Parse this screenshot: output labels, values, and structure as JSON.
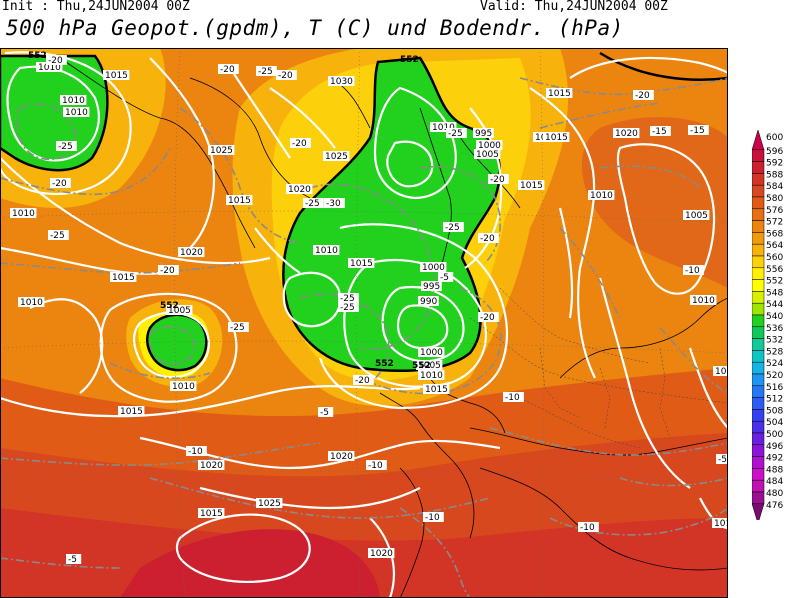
{
  "header": {
    "init": "Init : Thu,24JUN2004 00Z",
    "valid": "Valid: Thu,24JUN2004 00Z",
    "title": "500 hPa Geopot.(gpdm), T (C) und Bodendr. (hPa)"
  },
  "legend": {
    "levels": [
      "600",
      "596",
      "592",
      "588",
      "584",
      "580",
      "576",
      "572",
      "568",
      "564",
      "560",
      "556",
      "552",
      "548",
      "544",
      "540",
      "536",
      "532",
      "528",
      "524",
      "520",
      "516",
      "512",
      "508",
      "504",
      "500",
      "496",
      "492",
      "488",
      "484",
      "480",
      "476"
    ],
    "colors": [
      "#c8004e",
      "#c8103c",
      "#cc2030",
      "#d23426",
      "#d8481e",
      "#e05c16",
      "#e67012",
      "#ec8410",
      "#f29a0e",
      "#f7b20c",
      "#fcd00a",
      "#fff000",
      "#ffff00",
      "#d8f000",
      "#9ee600",
      "#22d01e",
      "#0fc85a",
      "#14c898",
      "#10c4c4",
      "#16b4e4",
      "#1e96f0",
      "#2478f4",
      "#2c5cf4",
      "#3440f0",
      "#4a2ee8",
      "#6a20e0",
      "#8c14d8",
      "#b010d0",
      "#cc10c8",
      "#c012b0",
      "#9a1090",
      "#7a0c70"
    ]
  },
  "contour_labels": {
    "isobars": [
      "1010",
      "1010",
      "1010",
      "1010",
      "1015",
      "1025",
      "1030",
      "1025",
      "1020",
      "1015",
      "1010",
      "1010",
      "995",
      "1000",
      "1005",
      "1015",
      "1010",
      "1015",
      "1020",
      "1015",
      "1010",
      "1005",
      "1000",
      "995",
      "990",
      "1000",
      "1005",
      "1010",
      "1015",
      "1015",
      "1010",
      "1010",
      "1005",
      "1010",
      "1015",
      "1020",
      "1020",
      "1025",
      "1020",
      "1020",
      "1010",
      "1015",
      "1015",
      "1010"
    ],
    "geopotential": [
      "552",
      "552",
      "552",
      "552",
      "552"
    ],
    "temperature": [
      "-20",
      "-25",
      "-25",
      "-20",
      "-20",
      "-20",
      "-25",
      "-20",
      "-20",
      "-25",
      "-30",
      "-25",
      "-25",
      "-25",
      "-25",
      "-20",
      "-25",
      "-20",
      "-20",
      "-20",
      "-15",
      "-10",
      "-20",
      "-15",
      "-10",
      "-5",
      "-10",
      "-10",
      "-10",
      "-5",
      "-10",
      "-5",
      "-5",
      "-10"
    ]
  }
}
